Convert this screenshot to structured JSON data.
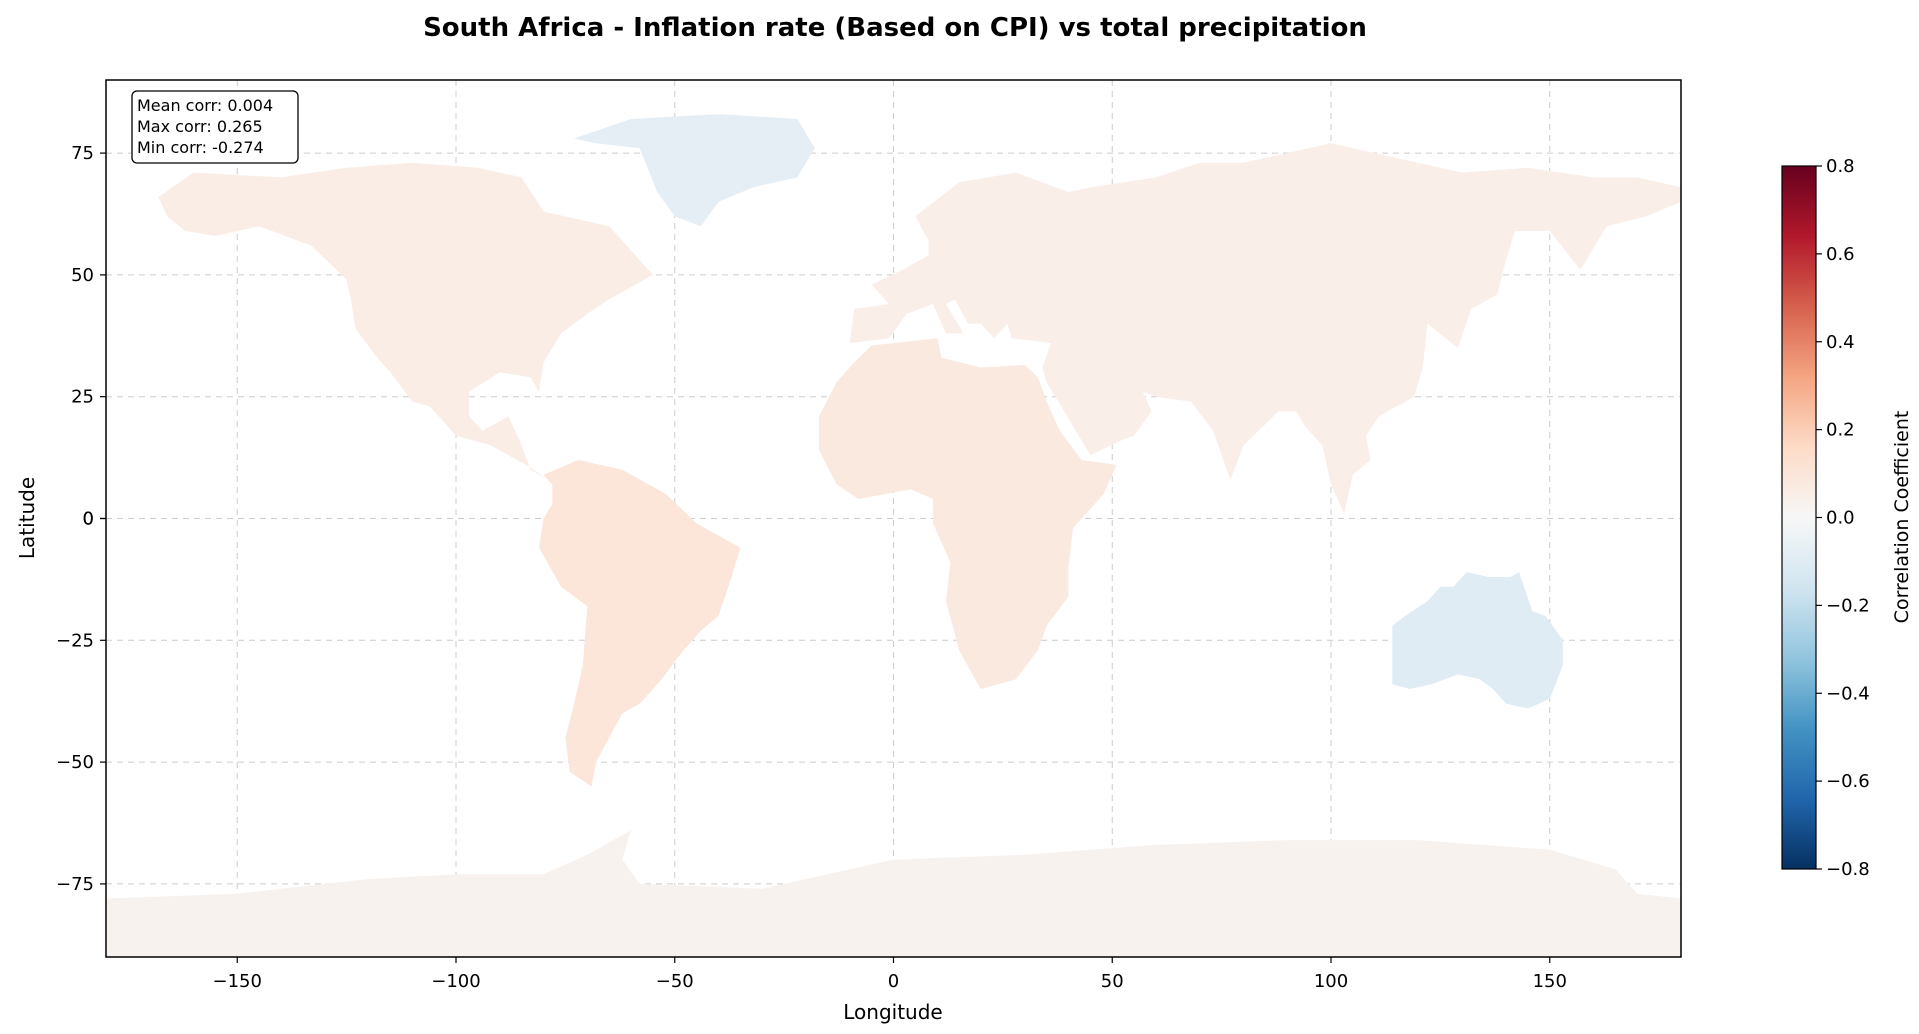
{
  "chart_data": {
    "type": "heatmap",
    "title": "South Africa - Inflation rate (Based on CPI) vs total precipitation",
    "xlabel": "Longitude",
    "ylabel": "Latitude",
    "xlim": [
      -180,
      180
    ],
    "ylim": [
      -90,
      90
    ],
    "x_ticks": [
      -150,
      -100,
      -50,
      0,
      50,
      100,
      150
    ],
    "y_ticks": [
      -75,
      -50,
      -25,
      0,
      25,
      50,
      75
    ],
    "grid": true,
    "colormap": "RdBu_r",
    "colormap_stops": [
      "#053061",
      "#2166ac",
      "#4393c3",
      "#92c5de",
      "#d1e5f0",
      "#f7f7f7",
      "#fddbc7",
      "#f4a582",
      "#d6604d",
      "#b2182b",
      "#67001f"
    ],
    "colorbar": {
      "label": "Correlation Coefficient",
      "range": [
        -0.8,
        0.8
      ],
      "ticks": [
        -0.8,
        -0.6,
        -0.4,
        -0.2,
        0.0,
        0.2,
        0.4,
        0.6,
        0.8
      ],
      "tick_labels": [
        "−0.8",
        "−0.6",
        "−0.4",
        "−0.2",
        "0.0",
        "0.2",
        "0.4",
        "0.6",
        "0.8"
      ]
    },
    "stats": {
      "mean_label": "Mean corr: 0.004",
      "max_label": "Max corr: 0.265",
      "min_label": "Min corr: -0.274",
      "mean": 0.004,
      "max": 0.265,
      "min": -0.274
    },
    "regions": [
      {
        "name": "North America",
        "corr": 0.06
      },
      {
        "name": "South America",
        "corr": 0.1
      },
      {
        "name": "Africa",
        "corr": 0.08
      },
      {
        "name": "Eurasia",
        "corr": 0.05
      },
      {
        "name": "Australia",
        "corr": -0.1
      },
      {
        "name": "Greenland",
        "corr": -0.08
      },
      {
        "name": "Antarctica",
        "corr": 0.03
      }
    ]
  }
}
